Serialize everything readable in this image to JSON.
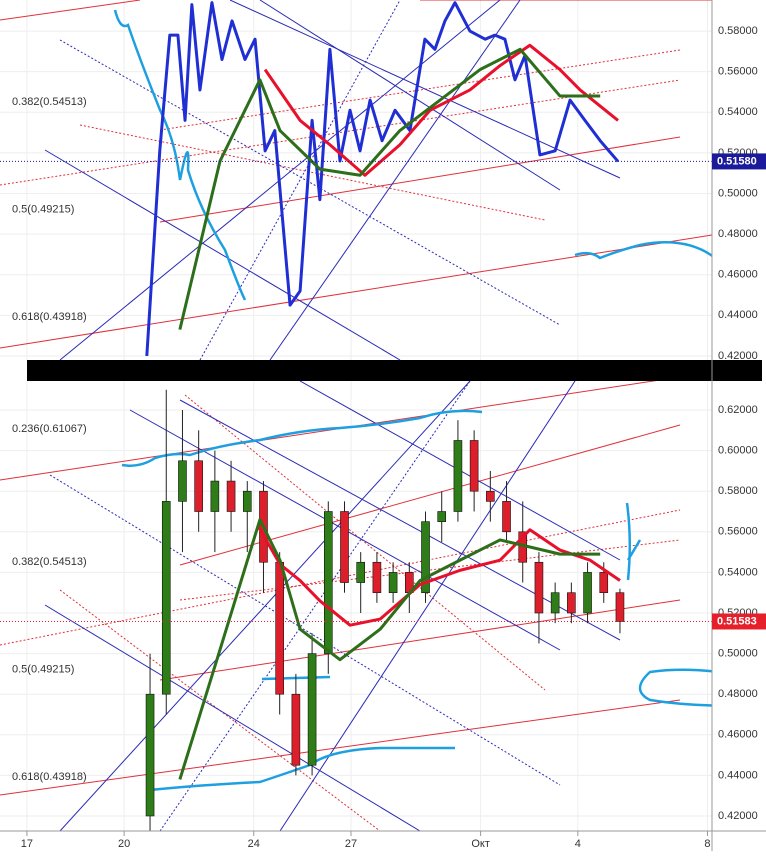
{
  "chart_data": [
    {
      "type": "line",
      "xlim": [
        16.17,
        38.14
      ],
      "ylim": [
        0.418,
        0.5953
      ],
      "yticks": [
        {
          "value": 0.58,
          "label": "0.58000"
        },
        {
          "value": 0.56,
          "label": "0.56000"
        },
        {
          "value": 0.54,
          "label": "0.54000"
        },
        {
          "value": 0.52,
          "label": "0.52000"
        },
        {
          "value": 0.5,
          "label": "0.50000"
        },
        {
          "value": 0.48,
          "label": "0.48000"
        },
        {
          "value": 0.46,
          "label": "0.46000"
        },
        {
          "value": 0.44,
          "label": "0.44000"
        },
        {
          "value": 0.42,
          "label": "0.42000"
        }
      ],
      "fib_levels": [
        {
          "value": 0.54513,
          "label": "0.382(0.54513)"
        },
        {
          "value": 0.49215,
          "label": "0.5(0.49215)"
        },
        {
          "value": 0.43918,
          "label": "0.618(0.43918)"
        }
      ],
      "last_price": {
        "value": 0.5158,
        "label": "0.51580"
      },
      "last_price_color": "#1a1a9a",
      "series": [
        {
          "color": "#1f2fd4",
          "x": [
            20.7,
            21.1,
            21.41,
            21.66,
            21.88,
            22.09,
            22.34,
            22.71,
            23.02,
            23.33,
            23.73,
            24.04,
            24.35,
            24.65,
            25.12,
            25.43,
            25.8,
            26.04,
            26.35,
            26.66,
            26.97,
            27.28,
            27.59,
            27.96,
            28.36,
            28.82,
            29.28,
            29.59,
            29.9,
            30.21,
            30.67,
            31.14,
            31.44,
            31.75,
            32.06,
            32.37,
            32.83,
            33.3,
            33.76,
            34.22,
            34.69,
            35.24
          ],
          "values": [
            0.42,
            0.521,
            0.578,
            0.578,
            0.536,
            0.593,
            0.551,
            0.594,
            0.566,
            0.585,
            0.566,
            0.576,
            0.521,
            0.531,
            0.445,
            0.452,
            0.536,
            0.497,
            0.571,
            0.516,
            0.541,
            0.521,
            0.546,
            0.526,
            0.541,
            0.531,
            0.576,
            0.571,
            0.585,
            0.594,
            0.58,
            0.576,
            0.578,
            0.576,
            0.556,
            0.568,
            0.519,
            0.521,
            0.546,
            0.536,
            0.526,
            0.5158
          ]
        },
        {
          "color": "#e8102a",
          "x": [
            24.35,
            25.43,
            26.35,
            27.43,
            28.51,
            29.44,
            30.67,
            31.6,
            32.52,
            33.45,
            34.07,
            35.24
          ],
          "values": [
            0.561,
            0.536,
            0.524,
            0.509,
            0.524,
            0.541,
            0.551,
            0.563,
            0.573,
            0.561,
            0.551,
            0.536
          ]
        },
        {
          "color": "#2d6e1a",
          "x": [
            21.72,
            22.96,
            24.19,
            24.81,
            26.04,
            27.28,
            28.51,
            29.75,
            30.98,
            32.22,
            33.45,
            34.69
          ],
          "values": [
            0.433,
            0.516,
            0.556,
            0.531,
            0.512,
            0.509,
            0.531,
            0.546,
            0.561,
            0.571,
            0.548,
            0.548
          ]
        }
      ]
    },
    {
      "type": "candlestick",
      "xlim": [
        16.17,
        38.14
      ],
      "ylim": [
        0.4126,
        0.6343
      ],
      "xticks": [
        17,
        20,
        24,
        27,
        {
          "value": 31,
          "label": "Окт"
        },
        34,
        38
      ],
      "xtick_labels_shown": [
        17,
        20,
        24,
        27,
        {
          "value": 31,
          "label": "Окт"
        },
        {
          "value": 34,
          "label": "4"
        },
        {
          "value": 38,
          "label": "8"
        }
      ],
      "yticks": [
        {
          "value": 0.62,
          "label": "0.62000"
        },
        {
          "value": 0.6,
          "label": "0.60000"
        },
        {
          "value": 0.58,
          "label": "0.58000"
        },
        {
          "value": 0.56,
          "label": "0.56000"
        },
        {
          "value": 0.54,
          "label": "0.54000"
        },
        {
          "value": 0.52,
          "label": "0.52000"
        },
        {
          "value": 0.5,
          "label": "0.50000"
        },
        {
          "value": 0.48,
          "label": "0.48000"
        },
        {
          "value": 0.46,
          "label": "0.46000"
        },
        {
          "value": 0.44,
          "label": "0.44000"
        },
        {
          "value": 0.42,
          "label": "0.42000"
        }
      ],
      "fib_levels": [
        {
          "value": 0.61067,
          "label": "0.236(0.61067)"
        },
        {
          "value": 0.54513,
          "label": "0.382(0.54513)"
        },
        {
          "value": 0.49215,
          "label": "0.5(0.49215)"
        },
        {
          "value": 0.43918,
          "label": "0.618(0.43918)"
        }
      ],
      "last_price": {
        "value": 0.51583,
        "label": "0.51583"
      },
      "last_price_color": "#e5202a",
      "up_color": "#2e7d18",
      "down_color": "#dd1f2b",
      "x": [
        20.8,
        21.3,
        21.8,
        22.3,
        22.8,
        23.3,
        23.8,
        24.3,
        24.8,
        25.3,
        25.8,
        26.3,
        26.8,
        27.3,
        27.8,
        28.3,
        28.8,
        29.3,
        29.8,
        30.3,
        30.8,
        31.3,
        31.8,
        32.3,
        32.8,
        33.3,
        33.8,
        34.3,
        34.8,
        35.3
      ],
      "open": [
        0.42,
        0.48,
        0.575,
        0.595,
        0.57,
        0.585,
        0.57,
        0.58,
        0.545,
        0.48,
        0.445,
        0.5,
        0.57,
        0.535,
        0.545,
        0.53,
        0.54,
        0.53,
        0.565,
        0.57,
        0.605,
        0.58,
        0.575,
        0.56,
        0.545,
        0.52,
        0.53,
        0.52,
        0.54,
        0.53
      ],
      "high": [
        0.5,
        0.63,
        0.62,
        0.61,
        0.6,
        0.595,
        0.585,
        0.585,
        0.55,
        0.49,
        0.51,
        0.575,
        0.575,
        0.55,
        0.55,
        0.545,
        0.545,
        0.57,
        0.58,
        0.615,
        0.61,
        0.59,
        0.585,
        0.575,
        0.55,
        0.535,
        0.535,
        0.545,
        0.545,
        0.532
      ],
      "low": [
        0.41,
        0.47,
        0.55,
        0.56,
        0.55,
        0.56,
        0.55,
        0.53,
        0.47,
        0.44,
        0.44,
        0.49,
        0.53,
        0.52,
        0.525,
        0.525,
        0.52,
        0.525,
        0.555,
        0.565,
        0.57,
        0.565,
        0.555,
        0.535,
        0.505,
        0.515,
        0.515,
        0.515,
        0.525,
        0.51
      ],
      "close": [
        0.48,
        0.575,
        0.595,
        0.57,
        0.585,
        0.57,
        0.58,
        0.545,
        0.48,
        0.445,
        0.5,
        0.57,
        0.535,
        0.545,
        0.53,
        0.54,
        0.53,
        0.565,
        0.57,
        0.605,
        0.58,
        0.575,
        0.56,
        0.545,
        0.52,
        0.53,
        0.52,
        0.54,
        0.53,
        0.51583
      ],
      "series": [
        {
          "color": "#e8102a",
          "x": [
            24.13,
            24.81,
            25.43,
            26.04,
            26.97,
            27.9,
            29.13,
            30.36,
            31.6,
            32.52,
            33.45,
            34.38,
            35.3
          ],
          "values": [
            0.563,
            0.544,
            0.536,
            0.526,
            0.514,
            0.517,
            0.534,
            0.541,
            0.546,
            0.561,
            0.551,
            0.546,
            0.536
          ]
        },
        {
          "color": "#2d6e1a",
          "x": [
            21.72,
            22.96,
            24.19,
            24.81,
            25.43,
            26.66,
            27.9,
            29.13,
            30.36,
            31.6,
            33.45,
            34.69
          ],
          "values": [
            0.438,
            0.502,
            0.566,
            0.546,
            0.512,
            0.497,
            0.512,
            0.536,
            0.546,
            0.556,
            0.549,
            0.549
          ]
        }
      ]
    }
  ]
}
